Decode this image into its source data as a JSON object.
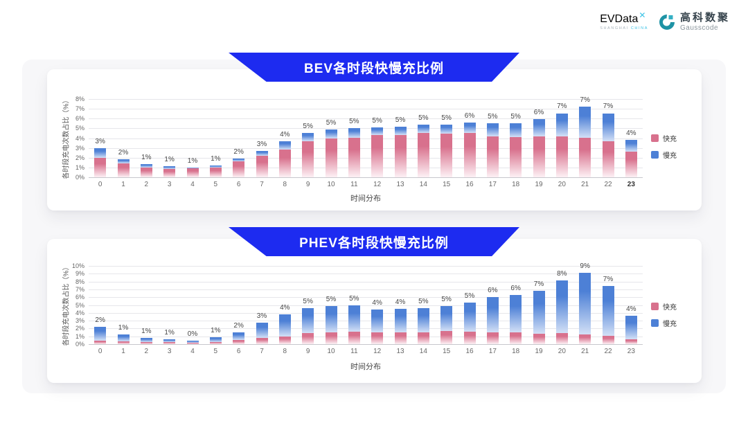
{
  "logo": {
    "evdata_text": "EVData",
    "evdata_x": "✕",
    "evdata_sub_1": "SHANGHAI ",
    "evdata_sub_2": "CHINA",
    "gausscode_cn": "高科数聚",
    "gausscode_en": "Gausscode"
  },
  "colors": {
    "banner_blue": "#1d2bf0",
    "fast_pink": "#d8718d",
    "fast_pink_fade": "#fdf1f5",
    "slow_blue": "#4d80d6",
    "slow_blue_fade": "#d3e0f6",
    "card_bg": "#ffffff",
    "slide_bg": "#f7f7f9"
  },
  "chart_data": [
    {
      "type": "bar",
      "stacked": true,
      "title": "BEV各时段快慢充比例",
      "xlabel": "时间分布",
      "ylabel": "各时段充电次数占比（%）",
      "ylim": [
        0,
        8
      ],
      "yticks": [
        "0%",
        "1%",
        "2%",
        "3%",
        "4%",
        "5%",
        "6%",
        "7%",
        "8%"
      ],
      "grid": true,
      "legend_position": "right",
      "categories": [
        "0",
        "1",
        "2",
        "3",
        "4",
        "5",
        "6",
        "7",
        "8",
        "9",
        "10",
        "11",
        "12",
        "13",
        "14",
        "15",
        "16",
        "17",
        "18",
        "19",
        "20",
        "21",
        "22",
        "23"
      ],
      "bold_xticks": [
        "23"
      ],
      "series": [
        {
          "name": "快充",
          "color": "#d8718d",
          "fade": "#fdf1f5",
          "values": [
            2.0,
            1.45,
            1.0,
            0.85,
            0.9,
            1.0,
            1.65,
            2.2,
            2.85,
            3.65,
            3.95,
            4.05,
            4.3,
            4.35,
            4.55,
            4.45,
            4.55,
            4.2,
            4.1,
            4.15,
            4.2,
            4.05,
            3.65,
            2.6
          ]
        },
        {
          "name": "慢充",
          "color": "#4d80d6",
          "fade": "#d3e0f6",
          "values": [
            0.95,
            0.4,
            0.35,
            0.25,
            0.1,
            0.2,
            0.25,
            0.5,
            0.8,
            0.9,
            0.95,
            0.95,
            0.8,
            0.85,
            0.85,
            0.95,
            1.05,
            1.3,
            1.4,
            1.8,
            2.35,
            3.2,
            2.9,
            1.2
          ]
        }
      ],
      "total_labels": [
        "3%",
        "2%",
        "1%",
        "1%",
        "1%",
        "1%",
        "2%",
        "3%",
        "4%",
        "5%",
        "5%",
        "5%",
        "5%",
        "5%",
        "5%",
        "5%",
        "6%",
        "5%",
        "5%",
        "6%",
        "7%",
        "7%",
        "7%",
        "4%"
      ]
    },
    {
      "type": "bar",
      "stacked": true,
      "title": "PHEV各时段快慢充比例",
      "xlabel": "时间分布",
      "ylabel": "各时段充电次数占比（%）",
      "ylim": [
        0,
        10
      ],
      "yticks": [
        "0%",
        "1%",
        "2%",
        "3%",
        "4%",
        "5%",
        "6%",
        "7%",
        "8%",
        "9%",
        "10%"
      ],
      "grid": true,
      "legend_position": "right",
      "categories": [
        "0",
        "1",
        "2",
        "3",
        "4",
        "5",
        "6",
        "7",
        "8",
        "9",
        "10",
        "11",
        "12",
        "13",
        "14",
        "15",
        "16",
        "17",
        "18",
        "19",
        "20",
        "21",
        "22",
        "23"
      ],
      "bold_xticks": [],
      "series": [
        {
          "name": "快充",
          "color": "#d8718d",
          "fade": "#fdf1f5",
          "values": [
            0.45,
            0.35,
            0.3,
            0.25,
            0.2,
            0.3,
            0.55,
            0.8,
            1.0,
            1.4,
            1.5,
            1.6,
            1.5,
            1.5,
            1.5,
            1.65,
            1.6,
            1.55,
            1.55,
            1.3,
            1.4,
            1.25,
            1.1,
            0.65
          ]
        },
        {
          "name": "慢充",
          "color": "#4d80d6",
          "fade": "#d3e0f6",
          "values": [
            1.8,
            0.85,
            0.5,
            0.35,
            0.25,
            0.55,
            1.0,
            1.95,
            2.85,
            3.2,
            3.35,
            3.4,
            2.9,
            3.0,
            3.1,
            3.25,
            3.75,
            4.5,
            4.7,
            5.5,
            6.7,
            7.85,
            6.3,
            3.0
          ]
        }
      ],
      "total_labels": [
        "2%",
        "1%",
        "1%",
        "1%",
        "0%",
        "1%",
        "2%",
        "3%",
        "4%",
        "5%",
        "5%",
        "5%",
        "4%",
        "4%",
        "5%",
        "5%",
        "5%",
        "6%",
        "6%",
        "7%",
        "8%",
        "9%",
        "7%",
        "4%"
      ]
    }
  ]
}
